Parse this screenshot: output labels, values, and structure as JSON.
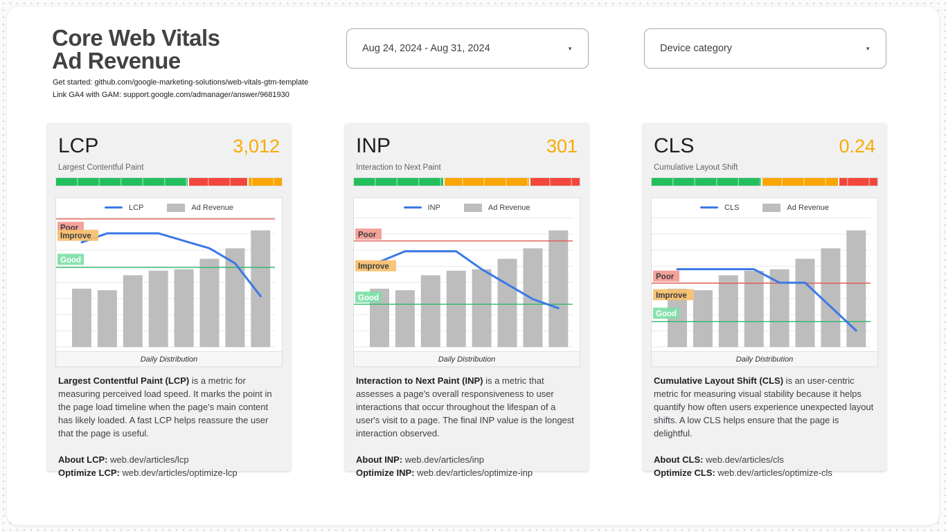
{
  "page": {
    "title_line1": "Core Web Vitals",
    "title_line2": "Ad Revenue",
    "link_line1": "Get started: github.com/google-marketing-solutions/web-vitals-gtm-template",
    "link_line2": "Link GA4 with GAM: support.google.com/admanager/answer/9681930"
  },
  "filters": {
    "date_range_value": "Aug 24, 2024 - Aug 31, 2024",
    "device_category_label": "Device category"
  },
  "colors": {
    "green": "#23BF5D",
    "red": "#F4463C",
    "orange": "#F9A602",
    "accent_value": "#F9AB00",
    "line_blue": "#3B78E7",
    "bar_gray": "#BDBDBD",
    "poor_line": "#E0584E",
    "good_line": "#2AB865",
    "chip_poor_bg": "#F49A92",
    "chip_improve_bg": "#F6BF6E",
    "chip_good_bg": "#7EE0A7",
    "chip_dark_text": "#3D3D3D",
    "chip_light_text": "#FFFFFF"
  },
  "cards": [
    {
      "metric": "LCP",
      "value": "3,012",
      "subtitle": "Largest Contentful Paint",
      "threshold_bar": [
        {
          "color": "green",
          "pct": 59
        },
        {
          "color": "red",
          "pct": 26
        },
        {
          "color": "orange",
          "pct": 15
        }
      ],
      "legend": {
        "line_label": "LCP",
        "bar_label": "Ad Revenue"
      },
      "caption": "Daily Distribution",
      "desc_bold": "Largest Contentful Paint (LCP)",
      "desc_text": " is a metric for measuring perceived load speed. It marks the point in the page load timeline when the page's main content has likely loaded. A fast LCP helps reassure the user that the page is useful.",
      "about_label": "About LCP:",
      "about_link": "web.dev/articles/lcp",
      "optimize_label": "Optimize LCP:",
      "optimize_link": "web.dev/articles/optimize-lcp"
    },
    {
      "metric": "INP",
      "value": "301",
      "subtitle": "Interaction to Next Paint",
      "threshold_bar": [
        {
          "color": "green",
          "pct": 40
        },
        {
          "color": "orange",
          "pct": 38
        },
        {
          "color": "red",
          "pct": 22
        }
      ],
      "legend": {
        "line_label": "INP",
        "bar_label": "Ad Revenue"
      },
      "caption": "Daily Distribution",
      "desc_bold": "Interaction to Next Paint (INP)",
      "desc_text": " is a metric that assesses a page's overall responsiveness to user interactions that occur throughout the lifespan of a user's visit to a page. The final INP value is the longest interaction observed.",
      "about_label": "About INP:",
      "about_link": "web.dev/articles/inp",
      "optimize_label": "Optimize INP:",
      "optimize_link": "web.dev/articles/optimize-inp"
    },
    {
      "metric": "CLS",
      "value": "0.24",
      "subtitle": "Cumulative Layout Shift",
      "threshold_bar": [
        {
          "color": "green",
          "pct": 49
        },
        {
          "color": "orange",
          "pct": 34
        },
        {
          "color": "red",
          "pct": 17
        }
      ],
      "legend": {
        "line_label": "CLS",
        "bar_label": "Ad Revenue"
      },
      "caption": "Daily Distribution",
      "desc_bold": "Cumulative Layout Shift (CLS)",
      "desc_text": " is an user-centric metric for measuring visual stability because it helps quantify how often users experience unexpected layout shifts. A low CLS helps ensure that the page is delightful.",
      "about_label": "About CLS:",
      "about_link": "web.dev/articles/cls",
      "optimize_label": "Optimize CLS:",
      "optimize_link": "web.dev/articles/optimize-cls"
    }
  ],
  "chart_data": [
    {
      "type": "combo line+bar",
      "title": "LCP vs Ad Revenue — Daily Distribution",
      "x": [
        1,
        2,
        3,
        4,
        5,
        6,
        7,
        8
      ],
      "x_note": "8 daily buckets, x axis unlabeled",
      "value_units": "fraction of plot height (no numeric axis shown)",
      "series": [
        {
          "name": "LCP",
          "type": "line",
          "values": [
            0.7,
            0.76,
            0.76,
            0.76,
            0.71,
            0.66,
            0.56,
            0.34
          ]
        },
        {
          "name": "Ad Revenue",
          "type": "bar",
          "values": [
            0.39,
            0.38,
            0.48,
            0.51,
            0.52,
            0.59,
            0.66,
            0.78
          ]
        }
      ],
      "thresholds": {
        "poor_line": 0.856,
        "good_line": 0.532
      },
      "annotations": [
        {
          "label": "Poor",
          "y": 0.8
        },
        {
          "label": "Improve",
          "y": 0.747
        },
        {
          "label": "Good",
          "y": 0.586
        }
      ],
      "ylim": [
        0,
        1
      ],
      "grid": true,
      "legend_position": "top",
      "caption": "Daily Distribution"
    },
    {
      "type": "combo line+bar",
      "title": "INP vs Ad Revenue — Daily Distribution",
      "x": [
        1,
        2,
        3,
        4,
        5,
        6,
        7,
        8
      ],
      "x_note": "8 daily buckets, x axis unlabeled",
      "value_units": "fraction of plot height (no numeric axis shown)",
      "series": [
        {
          "name": "INP",
          "type": "line",
          "values": [
            0.57,
            0.64,
            0.64,
            0.64,
            0.52,
            0.42,
            0.32,
            0.26
          ]
        },
        {
          "name": "Ad Revenue",
          "type": "bar",
          "values": [
            0.39,
            0.38,
            0.48,
            0.51,
            0.52,
            0.59,
            0.66,
            0.78
          ]
        }
      ],
      "thresholds": {
        "poor_line": 0.709,
        "good_line": 0.286
      },
      "annotations": [
        {
          "label": "Poor",
          "y": 0.755
        },
        {
          "label": "Improve",
          "y": 0.543
        },
        {
          "label": "Good",
          "y": 0.334
        }
      ],
      "ylim": [
        0,
        1
      ],
      "grid": true,
      "legend_position": "top",
      "caption": "Daily Distribution"
    },
    {
      "type": "combo line+bar",
      "title": "CLS vs Ad Revenue — Daily Distribution",
      "x": [
        1,
        2,
        3,
        4,
        5,
        6,
        7,
        8
      ],
      "x_note": "8 daily buckets, x axis unlabeled",
      "value_units": "fraction of plot height (no numeric axis shown)",
      "series": [
        {
          "name": "CLS",
          "type": "line",
          "values": [
            0.52,
            0.52,
            0.52,
            0.52,
            0.43,
            0.43,
            0.27,
            0.11
          ]
        },
        {
          "name": "Ad Revenue",
          "type": "bar",
          "values": [
            0.39,
            0.38,
            0.48,
            0.51,
            0.52,
            0.59,
            0.66,
            0.78
          ]
        }
      ],
      "thresholds": {
        "poor_line": 0.427,
        "good_line": 0.17
      },
      "annotations": [
        {
          "label": "Poor",
          "y": 0.474
        },
        {
          "label": "Improve",
          "y": 0.35
        },
        {
          "label": "Good",
          "y": 0.226
        }
      ],
      "ylim": [
        0,
        1
      ],
      "grid": true,
      "legend_position": "top",
      "caption": "Daily Distribution"
    }
  ]
}
